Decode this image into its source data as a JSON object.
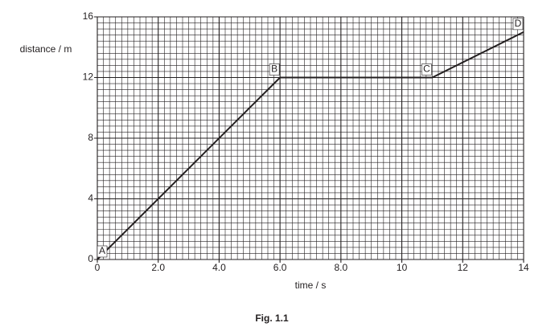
{
  "chart_data": {
    "type": "line",
    "x_label": "time / s",
    "y_label": "distance / m",
    "caption": "Fig. 1.1",
    "x": [
      0,
      6,
      11,
      14
    ],
    "series": [
      {
        "name": "distance",
        "color": "#231f20",
        "values": [
          0,
          12,
          12,
          15
        ],
        "point_labels": [
          "A",
          "B",
          "C",
          "D"
        ]
      }
    ],
    "xlim": [
      0,
      14
    ],
    "xticks": [
      0,
      {
        "value": 2,
        "label": "2.0"
      },
      {
        "value": 4,
        "label": "4.0"
      },
      {
        "value": 6,
        "label": "6.0"
      },
      {
        "value": 8,
        "label": "8.0"
      },
      10,
      12,
      14
    ],
    "ylim": [
      0,
      16
    ],
    "yticks": [
      0,
      4,
      8,
      12,
      16
    ],
    "grid": true
  }
}
